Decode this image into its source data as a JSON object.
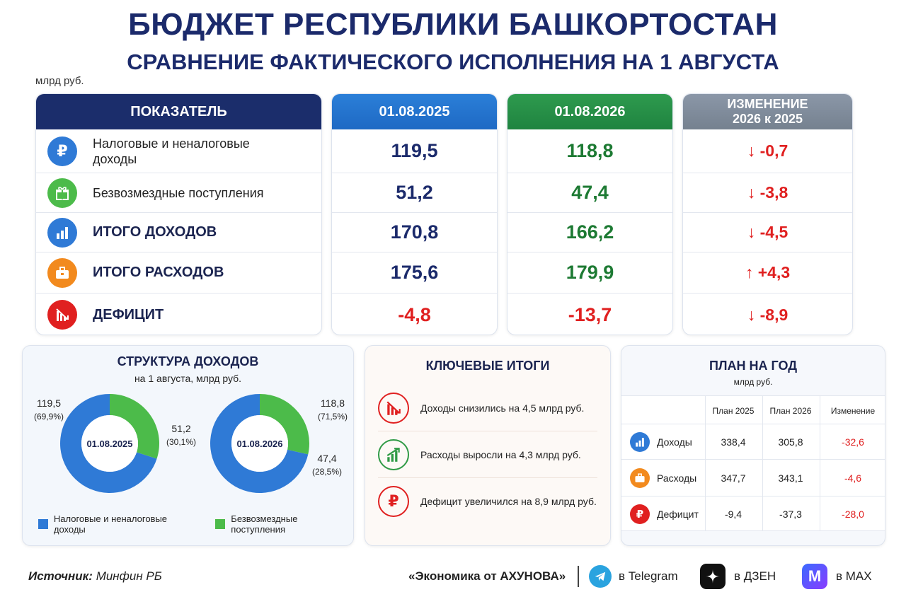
{
  "header": {
    "title": "БЮДЖЕТ РЕСПУБЛИКИ БАШКОРТОСТАН",
    "subtitle": "СРАВНЕНИЕ ФАКТИЧЕСКОГО ИСПОЛНЕНИЯ НА 1 АВГУСТА",
    "unit": "млрд руб."
  },
  "table": {
    "col_indicator": "ПОКАЗАТЕЛЬ",
    "col_2025": "01.08.2025",
    "col_2026": "01.08.2026",
    "col_change_line1": "ИЗМЕНЕНИЕ",
    "col_change_line2": "2026 к 2025",
    "rows": [
      {
        "label": "Налоговые и неналоговые доходы",
        "v2025": "119,5",
        "v2026": "118,8",
        "change": "-0,7",
        "arrow": "down",
        "icon": "ruble-icon"
      },
      {
        "label": "Безвозмездные поступления",
        "v2025": "51,2",
        "v2026": "47,4",
        "change": "-3,8",
        "arrow": "down",
        "icon": "gift-icon"
      },
      {
        "label": "ИТОГО ДОХОДОВ",
        "v2025": "170,8",
        "v2026": "166,2",
        "change": "-4,5",
        "arrow": "down",
        "icon": "bar-chart-icon"
      },
      {
        "label": "ИТОГО РАСХОДОВ",
        "v2025": "175,6",
        "v2026": "179,9",
        "change": "+4,3",
        "arrow": "up",
        "icon": "briefcase-icon"
      },
      {
        "label": "ДЕФИЦИТ",
        "v2025": "-4,8",
        "v2026": "-13,7",
        "change": "-8,9",
        "arrow": "down",
        "icon": "declining-chart-icon"
      }
    ]
  },
  "structure": {
    "title": "СТРУКТУРА ДОХОДОВ",
    "subtitle": "на 1 августа, млрд руб.",
    "legend_tax": "Налоговые и неналоговые доходы",
    "legend_free": "Безвозмездные поступления",
    "colors": {
      "tax": "#2f7ad6",
      "free": "#4cbb4a"
    }
  },
  "chart_data": [
    {
      "type": "pie",
      "center_label": "01.08.2025",
      "categories": [
        "Налоговые и неналоговые доходы",
        "Безвозмездные поступления"
      ],
      "values": [
        119.5,
        51.2
      ],
      "value_labels": [
        "119,5",
        "51,2"
      ],
      "pct_labels": [
        "(69,9%)",
        "(30,1%)"
      ]
    },
    {
      "type": "pie",
      "center_label": "01.08.2026",
      "categories": [
        "Налоговые и неналоговые доходы",
        "Безвозмездные поступления"
      ],
      "values": [
        118.8,
        47.4
      ],
      "value_labels": [
        "118,8",
        "47,4"
      ],
      "pct_labels": [
        "(71,5%)",
        "(28,5%)"
      ]
    }
  ],
  "key": {
    "title": "КЛЮЧЕВЫЕ ИТОГИ",
    "items": [
      {
        "text": "Доходы снизились на 4,5 млрд руб.",
        "icon": "declining-chart-icon"
      },
      {
        "text": "Расходы выросли на 4,3 млрд руб.",
        "icon": "rising-chart-icon"
      },
      {
        "text": "Дефицит увеличился на 8,9 млрд руб.",
        "icon": "ruble-icon"
      }
    ]
  },
  "plan": {
    "title": "ПЛАН НА ГОД",
    "unit": "млрд руб.",
    "col_2025": "План 2025",
    "col_2026": "План 2026",
    "col_change": "Изменение",
    "rows": [
      {
        "label": "Доходы",
        "p2025": "338,4",
        "p2026": "305,8",
        "change": "-32,6",
        "icon": "bar-chart-icon"
      },
      {
        "label": "Расходы",
        "p2025": "347,7",
        "p2026": "343,1",
        "change": "-4,6",
        "icon": "briefcase-icon"
      },
      {
        "label": "Дефицит",
        "p2025": "-9,4",
        "p2026": "-37,3",
        "change": "-28,0",
        "icon": "ruble-icon"
      }
    ]
  },
  "footer": {
    "source_label": "Источник:",
    "source_value": "Минфин РБ",
    "brand": "«Экономика от АХУНОВА»",
    "telegram": "в Telegram",
    "dzen": "в ДЗЕН",
    "max": "в MAX"
  }
}
